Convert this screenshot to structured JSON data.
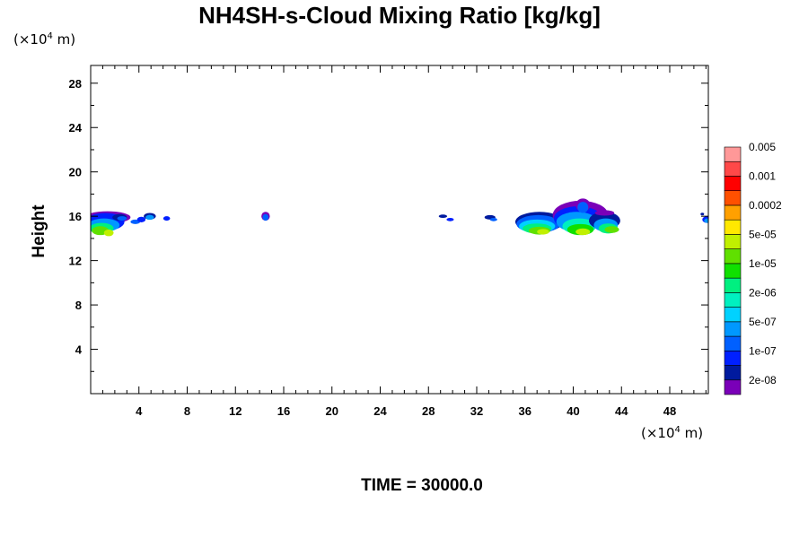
{
  "title": "NH4SH-s-Cloud Mixing Ratio [kg/kg]",
  "time_label": "TIME = 30000.0",
  "y_unit": {
    "prefix": "(×10",
    "exp": "4",
    "suffix": " m)"
  },
  "x_unit": {
    "prefix": "(×10",
    "exp": "4",
    "suffix": " m)"
  },
  "chart_data": {
    "type": "heatmap",
    "title": "NH4SH-s-Cloud Mixing Ratio [kg/kg]",
    "ylabel": "Height",
    "xlabel": "",
    "xlim": [
      0,
      51.2
    ],
    "ylim": [
      0,
      29.6
    ],
    "x_ticks": [
      4,
      8,
      12,
      16,
      20,
      24,
      28,
      32,
      36,
      40,
      44,
      48
    ],
    "x_tick_labels": [
      "4",
      "8",
      "12",
      "16",
      "20",
      "24",
      "28",
      "32",
      "36",
      "40",
      "44",
      "48"
    ],
    "y_ticks": [
      4,
      8,
      12,
      16,
      20,
      24,
      28
    ],
    "y_tick_labels": [
      "4",
      "8",
      "12",
      "16",
      "20",
      "24",
      "28"
    ],
    "colorbar": {
      "colors": [
        "#7a00b8",
        "#001a9e",
        "#0020ff",
        "#0060ff",
        "#0098ff",
        "#00d2ff",
        "#00f0c0",
        "#00f080",
        "#10e000",
        "#60e000",
        "#c0f000",
        "#ffe800",
        "#ffa000",
        "#ff5000",
        "#ff0000",
        "#ff4848",
        "#ff9898"
      ],
      "labels": [
        "2e-08",
        "1e-07",
        "5e-07",
        "2e-06",
        "1e-05",
        "5e-05",
        "0.0002",
        "0.001",
        "0.005"
      ]
    },
    "cloud_regions": [
      {
        "x_range": [
          0,
          6.5
        ],
        "y_range": [
          14.2,
          16.4
        ]
      },
      {
        "x_range": [
          14.2,
          14.8
        ],
        "y_range": [
          15.5,
          16.4
        ]
      },
      {
        "x_range": [
          28.8,
          30.2
        ],
        "y_range": [
          15.5,
          16.2
        ]
      },
      {
        "x_range": [
          32.7,
          33.8
        ],
        "y_range": [
          15.5,
          16.2
        ]
      },
      {
        "x_range": [
          35.1,
          44.0
        ],
        "y_range": [
          14.2,
          17.7
        ]
      },
      {
        "x_range": [
          50.2,
          51.2
        ],
        "y_range": [
          15.2,
          16.3
        ]
      }
    ]
  }
}
